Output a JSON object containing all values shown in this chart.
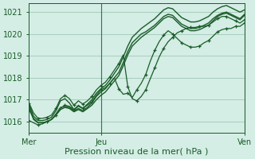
{
  "title": "",
  "xlabel": "Pression niveau de la mer( hPa )",
  "ylabel": "",
  "bg_color": "#d4ede5",
  "grid_color": "#a0c8b8",
  "line_color": "#1a5c28",
  "ylim": [
    1015.5,
    1021.4
  ],
  "xlim": [
    0,
    48
  ],
  "xticks": [
    0,
    16,
    48
  ],
  "xtick_labels": [
    "Mer",
    "Jeu",
    "Ven"
  ],
  "yticks": [
    1016,
    1017,
    1018,
    1019,
    1020,
    1021
  ],
  "vlines": [
    16,
    48
  ],
  "series": [
    {
      "y": [
        1016.7,
        1016.1,
        1015.95,
        1015.95,
        1016.0,
        1016.1,
        1016.3,
        1016.55,
        1016.65,
        1016.6,
        1016.45,
        1016.55,
        1016.45,
        1016.6,
        1016.75,
        1017.0,
        1017.2,
        1017.35,
        1017.6,
        1017.85,
        1018.1,
        1018.55,
        1019.05,
        1019.45,
        1019.65,
        1019.85,
        1020.0,
        1020.15,
        1020.3,
        1020.5,
        1020.7,
        1020.8,
        1020.75,
        1020.55,
        1020.35,
        1020.25,
        1020.15,
        1020.15,
        1020.2,
        1020.3,
        1020.4,
        1020.6,
        1020.8,
        1020.9,
        1020.95,
        1020.85,
        1020.75,
        1020.65,
        1020.85
      ],
      "marker": false,
      "lw": 1.0
    },
    {
      "y": [
        1016.55,
        1016.15,
        1015.95,
        1015.95,
        1016.0,
        1016.1,
        1016.35,
        1016.65,
        1016.7,
        1016.65,
        1016.5,
        1016.6,
        1016.5,
        1016.65,
        1016.85,
        1017.15,
        1017.35,
        1017.5,
        1017.75,
        1018.0,
        1018.25,
        1018.7,
        1019.2,
        1019.6,
        1019.8,
        1020.0,
        1020.1,
        1020.25,
        1020.4,
        1020.6,
        1020.8,
        1020.9,
        1020.85,
        1020.65,
        1020.45,
        1020.35,
        1020.25,
        1020.25,
        1020.3,
        1020.4,
        1020.5,
        1020.7,
        1020.85,
        1020.95,
        1021.0,
        1020.9,
        1020.8,
        1020.7,
        1020.9
      ],
      "marker": false,
      "lw": 1.0
    },
    {
      "y": [
        1016.8,
        1016.25,
        1016.05,
        1016.05,
        1016.1,
        1016.2,
        1016.5,
        1016.95,
        1017.05,
        1016.85,
        1016.55,
        1016.7,
        1016.6,
        1016.8,
        1017.0,
        1017.3,
        1017.5,
        1017.65,
        1017.9,
        1018.2,
        1018.5,
        1018.95,
        1019.45,
        1019.85,
        1020.05,
        1020.25,
        1020.4,
        1020.55,
        1020.7,
        1020.9,
        1021.1,
        1021.2,
        1021.15,
        1020.95,
        1020.75,
        1020.65,
        1020.55,
        1020.55,
        1020.6,
        1020.7,
        1020.8,
        1021.0,
        1021.15,
        1021.25,
        1021.3,
        1021.2,
        1021.1,
        1021.0,
        1021.1
      ],
      "marker": false,
      "lw": 1.0
    },
    {
      "y": [
        1016.05,
        1015.95,
        1015.85,
        1015.9,
        1016.0,
        1016.1,
        1016.3,
        1016.6,
        1016.75,
        1016.7,
        1016.55,
        1016.75,
        1016.6,
        1016.75,
        1016.9,
        1017.2,
        1017.45,
        1017.55,
        1017.75,
        1018.0,
        1017.5,
        1017.25,
        1017.3,
        1017.1,
        1017.45,
        1017.75,
        1018.15,
        1018.75,
        1019.25,
        1019.65,
        1019.95,
        1020.15,
        1020.0,
        1019.8,
        1019.6,
        1019.5,
        1019.4,
        1019.4,
        1019.45,
        1019.6,
        1019.7,
        1019.9,
        1020.1,
        1020.2,
        1020.25,
        1020.25,
        1020.35,
        1020.35,
        1020.5
      ],
      "marker": true,
      "lw": 0.9
    },
    {
      "y": [
        1016.85,
        1016.4,
        1016.15,
        1016.15,
        1016.2,
        1016.3,
        1016.6,
        1017.05,
        1017.2,
        1017.05,
        1016.75,
        1016.95,
        1016.8,
        1016.95,
        1017.15,
        1017.45,
        1017.65,
        1017.8,
        1018.05,
        1018.35,
        1018.65,
        1019.05,
        1017.6,
        1017.05,
        1016.95,
        1017.15,
        1017.45,
        1017.95,
        1018.45,
        1018.95,
        1019.35,
        1019.65,
        1019.85,
        1020.05,
        1020.15,
        1020.25,
        1020.3,
        1020.3,
        1020.35,
        1020.35,
        1020.4,
        1020.55,
        1020.7,
        1020.8,
        1020.8,
        1020.7,
        1020.6,
        1020.5,
        1020.65
      ],
      "marker": true,
      "lw": 0.9
    }
  ],
  "tick_fontsize": 7,
  "label_fontsize": 8
}
